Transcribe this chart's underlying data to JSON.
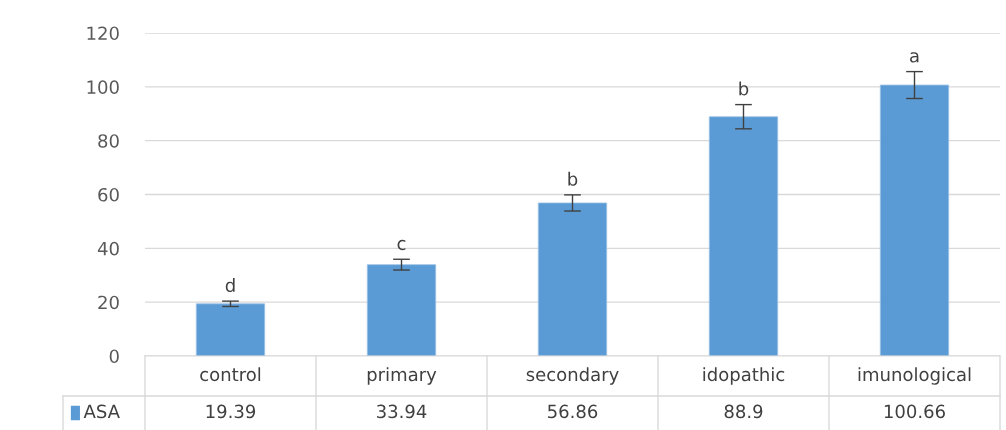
{
  "chart_data": {
    "type": "bar",
    "categories": [
      "control",
      "primary",
      "secondary",
      "idopathic",
      "imunological"
    ],
    "series": [
      {
        "name": "ASA",
        "color": "#5b9bd5",
        "values": [
          19.39,
          33.94,
          56.86,
          88.9,
          100.66
        ],
        "errors": [
          1,
          2,
          3,
          4.5,
          5
        ]
      }
    ],
    "ylim": [
      0,
      120
    ],
    "yticks": [
      0,
      20,
      40,
      60,
      80,
      100,
      120
    ],
    "grid": "y",
    "data_labels": true,
    "legend": "bottom",
    "annotations": [
      {
        "text": "d",
        "x": "control",
        "y": 19.39
      },
      {
        "text": "c",
        "x": "primary",
        "y": 33.94
      },
      {
        "text": "b",
        "x": "secondary",
        "y": 56.86
      },
      {
        "text": "b",
        "x": "idopathic",
        "y": 88.9
      },
      {
        "text": "a",
        "x": "imunological",
        "y": 100.66
      }
    ]
  }
}
